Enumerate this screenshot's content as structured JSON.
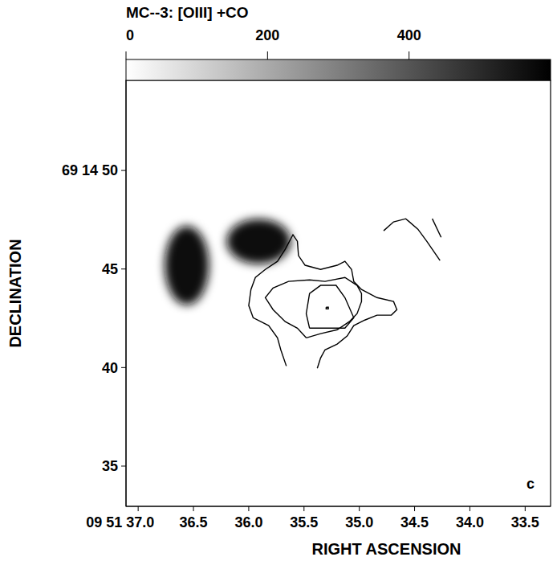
{
  "chart_data": {
    "type": "contour",
    "title": "MC--3: [OIII] +CO",
    "x_label": "RIGHT ASCENSION",
    "y_label": "DECLINATION",
    "panel_label": "c",
    "xlim": [
      37.11,
      33.27
    ],
    "xticks": [
      {
        "value": 37.0,
        "label": "09 51 37.0"
      },
      36.5,
      {
        "value": 36.0,
        "label": "36.0"
      },
      35.5,
      {
        "value": 35.0,
        "label": "35.0"
      },
      34.5,
      {
        "value": 34.0,
        "label": "34.0"
      },
      33.5
    ],
    "ylim": [
      32.96,
      54.57
    ],
    "yticks": [
      {
        "value": 50,
        "label": "69 14 50"
      },
      45,
      40,
      35
    ],
    "colorbar": {
      "range": [
        0,
        600
      ],
      "ticks": [
        0,
        200,
        400
      ]
    },
    "blobs": [
      {
        "x": 36.56,
        "y": 45.18,
        "rx": 0.2,
        "ry": 2.0,
        "value": 560
      },
      {
        "x": 35.91,
        "y": 46.4,
        "rx": 0.29,
        "ry": 1.14,
        "value": 560
      }
    ],
    "color": "#000000",
    "contours": [
      {
        "x": [
          35.66,
          35.71,
          35.74,
          35.82,
          35.96,
          36.0,
          35.98,
          35.94,
          35.85,
          35.74,
          35.67,
          35.6,
          35.56,
          35.55,
          35.49,
          35.35,
          35.2,
          35.13,
          35.07,
          35.05,
          34.98,
          34.84,
          34.69,
          34.66,
          34.71,
          34.84,
          34.95,
          35.05,
          35.11,
          35.2,
          35.31,
          35.35,
          35.38
        ],
        "y": [
          40.08,
          40.9,
          41.51,
          42.13,
          42.53,
          43.15,
          43.96,
          44.57,
          44.98,
          45.39,
          46.0,
          46.74,
          46.41,
          45.68,
          45.19,
          44.98,
          45.19,
          45.39,
          44.98,
          44.37,
          43.96,
          43.55,
          43.35,
          42.94,
          42.66,
          42.66,
          42.41,
          42.13,
          41.6,
          41.19,
          40.9,
          40.49,
          39.96
        ]
      },
      {
        "x": [
          35.48,
          35.56,
          35.67,
          35.78,
          35.85,
          35.78,
          35.64,
          35.45,
          35.31,
          35.13,
          35.02,
          34.98,
          34.98,
          35.02,
          35.09,
          35.2,
          35.35,
          35.48
        ],
        "y": [
          41.51,
          42.0,
          42.33,
          42.94,
          43.55,
          44.04,
          44.37,
          44.45,
          44.37,
          44.57,
          44.17,
          43.76,
          43.35,
          42.74,
          42.33,
          41.92,
          41.72,
          41.51
        ]
      },
      {
        "x": [
          35.45,
          35.48,
          35.45,
          35.35,
          35.21,
          35.13,
          35.05,
          35.13,
          35.27,
          35.45
        ],
        "y": [
          42.0,
          42.74,
          43.76,
          44.17,
          44.17,
          43.55,
          42.53,
          42.0,
          42.0,
          42.0
        ]
      },
      {
        "x": [
          35.3,
          35.28,
          35.28,
          35.3,
          35.3
        ],
        "y": [
          43.06,
          43.06,
          42.98,
          42.98,
          43.06
        ]
      },
      {
        "x": [
          34.78,
          34.69,
          34.58,
          34.47,
          34.39,
          34.27
        ],
        "y": [
          46.94,
          47.39,
          47.55,
          47.02,
          46.41,
          45.43
        ]
      },
      {
        "x": [
          34.34,
          34.26
        ],
        "y": [
          47.55,
          46.61
        ]
      }
    ]
  }
}
